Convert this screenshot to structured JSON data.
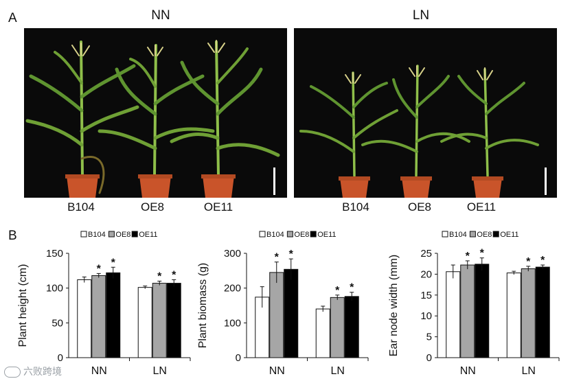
{
  "panel_a": {
    "letter": "A",
    "photos": [
      {
        "condition": "NN",
        "genotypes": [
          "B104",
          "OE8",
          "OE11"
        ]
      },
      {
        "condition": "LN",
        "genotypes": [
          "B104",
          "OE8",
          "OE11"
        ]
      }
    ]
  },
  "panel_b": {
    "letter": "B"
  },
  "colors": {
    "B104": "#ffffff",
    "OE8": "#a6a6a6",
    "OE11": "#000000",
    "stem": "#7fae3a",
    "pot": "#c9542a"
  },
  "chart_data": [
    {
      "type": "bar",
      "ylabel": "Plant height (cm)",
      "categories": [
        "NN",
        "LN"
      ],
      "ylim": [
        0,
        150
      ],
      "yticks": [
        0,
        50,
        100,
        150
      ],
      "series": [
        {
          "name": "B104",
          "values": [
            112,
            101
          ],
          "errors": [
            4,
            2
          ],
          "sig": [
            false,
            false
          ]
        },
        {
          "name": "OE8",
          "values": [
            118,
            107
          ],
          "errors": [
            3,
            3
          ],
          "sig": [
            true,
            true
          ]
        },
        {
          "name": "OE11",
          "values": [
            122,
            107
          ],
          "errors": [
            8,
            5
          ],
          "sig": [
            true,
            true
          ]
        }
      ],
      "sig_marker": "*",
      "legend": "top"
    },
    {
      "type": "bar",
      "ylabel": "Plant biomass (g)",
      "categories": [
        "NN",
        "LN"
      ],
      "ylim": [
        0,
        300
      ],
      "yticks": [
        0,
        100,
        200,
        300
      ],
      "series": [
        {
          "name": "B104",
          "values": [
            174,
            140
          ],
          "errors": [
            30,
            8
          ],
          "sig": [
            false,
            false
          ]
        },
        {
          "name": "OE8",
          "values": [
            245,
            173
          ],
          "errors": [
            30,
            7
          ],
          "sig": [
            true,
            true
          ]
        },
        {
          "name": "OE11",
          "values": [
            254,
            176
          ],
          "errors": [
            30,
            12
          ],
          "sig": [
            true,
            true
          ]
        }
      ],
      "sig_marker": "*",
      "legend": "top"
    },
    {
      "type": "bar",
      "ylabel": "Ear node width (mm)",
      "categories": [
        "NN",
        "LN"
      ],
      "ylim": [
        0,
        25
      ],
      "yticks": [
        0,
        5,
        10,
        15,
        20,
        25
      ],
      "series": [
        {
          "name": "B104",
          "values": [
            20.6,
            20.3
          ],
          "errors": [
            1.6,
            0.4
          ],
          "sig": [
            false,
            false
          ]
        },
        {
          "name": "OE8",
          "values": [
            22.2,
            21.3
          ],
          "errors": [
            1.0,
            0.6
          ],
          "sig": [
            true,
            true
          ]
        },
        {
          "name": "OE11",
          "values": [
            22.4,
            21.7
          ],
          "errors": [
            1.5,
            0.5
          ],
          "sig": [
            true,
            true
          ]
        }
      ],
      "sig_marker": "*",
      "legend": "top"
    }
  ],
  "watermark": {
    "text": "六败跨境"
  }
}
